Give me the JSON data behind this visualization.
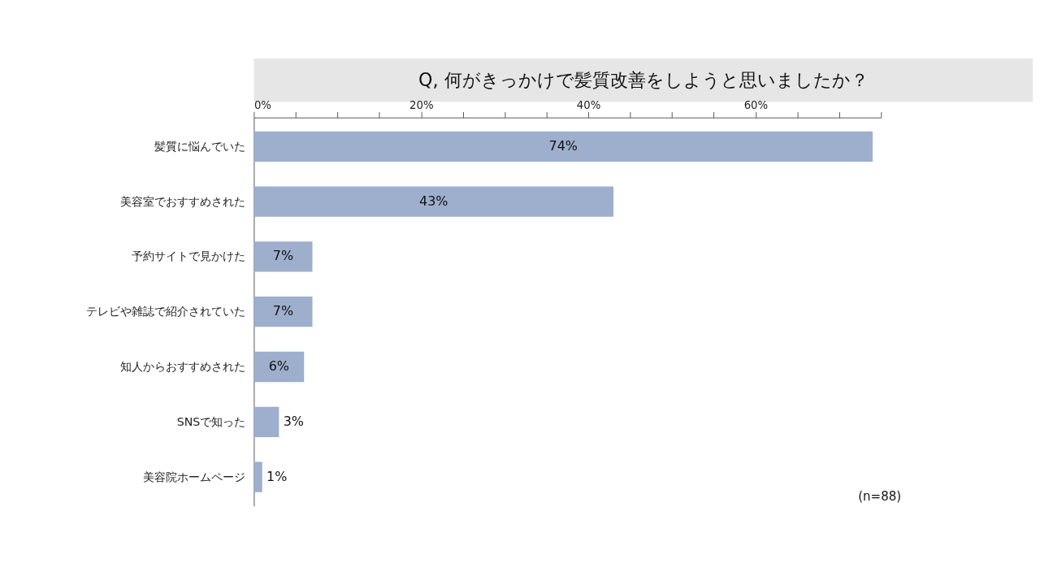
{
  "chart_data": {
    "type": "bar",
    "orientation": "horizontal",
    "title": "Q, 何がきっかけで髪質改善をしようと思いましたか？",
    "categories": [
      "髪質に悩んでいた",
      "美容室でおすすめされた",
      "予約サイトで見かけた",
      "テレビや雑誌で紹介されていた",
      "知人からおすすめされた",
      "SNSで知った",
      "美容院ホームページ"
    ],
    "values": [
      74,
      43,
      7,
      7,
      6,
      3,
      1
    ],
    "value_labels": [
      "74%",
      "43%",
      "7%",
      "7%",
      "6%",
      "3%",
      "1%"
    ],
    "color": "#9dafcd",
    "xlim": [
      0,
      75
    ],
    "xticks": [
      {
        "value": 0,
        "label": "0%"
      },
      {
        "value": 5,
        "label": null
      },
      {
        "value": 10,
        "label": null
      },
      {
        "value": 15,
        "label": null
      },
      {
        "value": 20,
        "label": "20%"
      },
      {
        "value": 25,
        "label": null
      },
      {
        "value": 30,
        "label": null
      },
      {
        "value": 35,
        "label": null
      },
      {
        "value": 40,
        "label": "40%"
      },
      {
        "value": 45,
        "label": null
      },
      {
        "value": 50,
        "label": null
      },
      {
        "value": 55,
        "label": null
      },
      {
        "value": 60,
        "label": "60%"
      },
      {
        "value": 65,
        "label": null
      },
      {
        "value": 70,
        "label": null
      },
      {
        "value": 75,
        "label": null
      }
    ],
    "grid": false,
    "annotations": [
      "(n=88)"
    ]
  }
}
